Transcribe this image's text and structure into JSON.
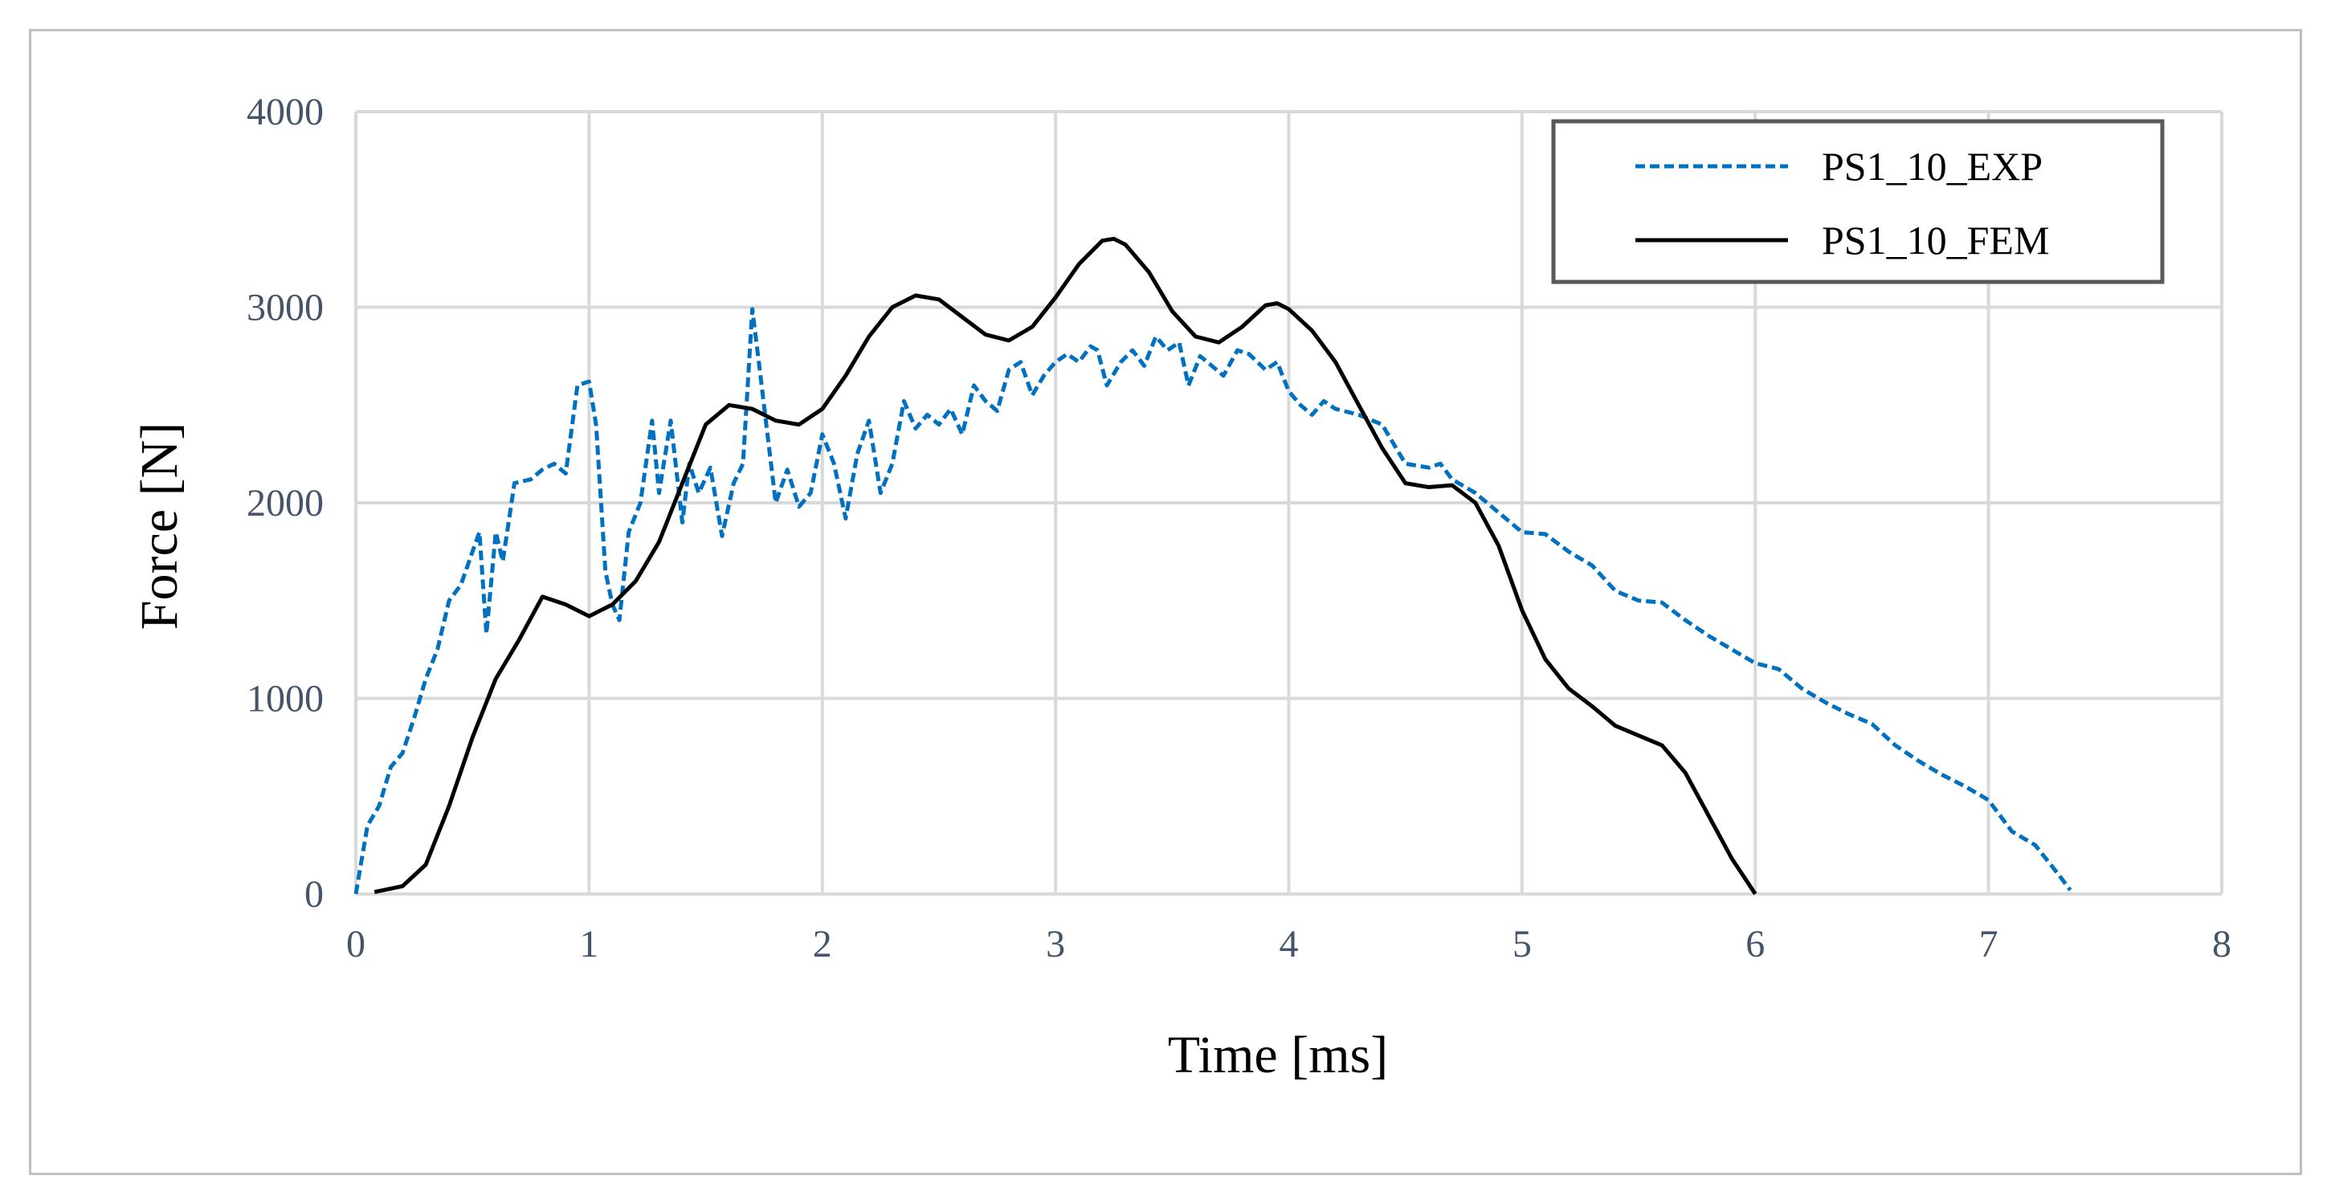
{
  "chart_data": {
    "type": "line",
    "xlabel": "Time [ms]",
    "ylabel": "Force [N]",
    "xlim": [
      0,
      8
    ],
    "ylim": [
      0,
      4000
    ],
    "x_ticks": [
      "0",
      "1",
      "2",
      "3",
      "4",
      "5",
      "6",
      "7",
      "8"
    ],
    "y_ticks": [
      "0",
      "1000",
      "2000",
      "3000",
      "4000"
    ],
    "grid": true,
    "legend_position": "top-right",
    "series": [
      {
        "name": "PS1_10_EXP",
        "color": "#0070c0",
        "style": "dashed",
        "points": [
          [
            0.0,
            0
          ],
          [
            0.05,
            350
          ],
          [
            0.1,
            450
          ],
          [
            0.15,
            650
          ],
          [
            0.2,
            720
          ],
          [
            0.25,
            900
          ],
          [
            0.3,
            1100
          ],
          [
            0.35,
            1250
          ],
          [
            0.4,
            1500
          ],
          [
            0.45,
            1580
          ],
          [
            0.5,
            1750
          ],
          [
            0.53,
            1850
          ],
          [
            0.55,
            1500
          ],
          [
            0.56,
            1330
          ],
          [
            0.6,
            1850
          ],
          [
            0.63,
            1700
          ],
          [
            0.68,
            2100
          ],
          [
            0.75,
            2120
          ],
          [
            0.8,
            2170
          ],
          [
            0.85,
            2200
          ],
          [
            0.9,
            2150
          ],
          [
            0.95,
            2600
          ],
          [
            1.0,
            2620
          ],
          [
            1.03,
            2400
          ],
          [
            1.07,
            1650
          ],
          [
            1.1,
            1480
          ],
          [
            1.13,
            1400
          ],
          [
            1.17,
            1850
          ],
          [
            1.22,
            2000
          ],
          [
            1.27,
            2420
          ],
          [
            1.3,
            2050
          ],
          [
            1.35,
            2420
          ],
          [
            1.4,
            1900
          ],
          [
            1.43,
            2200
          ],
          [
            1.47,
            2050
          ],
          [
            1.52,
            2180
          ],
          [
            1.57,
            1830
          ],
          [
            1.62,
            2100
          ],
          [
            1.66,
            2200
          ],
          [
            1.7,
            2990
          ],
          [
            1.73,
            2700
          ],
          [
            1.8,
            2000
          ],
          [
            1.85,
            2170
          ],
          [
            1.9,
            1980
          ],
          [
            1.95,
            2050
          ],
          [
            2.0,
            2350
          ],
          [
            2.05,
            2200
          ],
          [
            2.1,
            1920
          ],
          [
            2.15,
            2250
          ],
          [
            2.2,
            2420
          ],
          [
            2.25,
            2050
          ],
          [
            2.3,
            2200
          ],
          [
            2.35,
            2520
          ],
          [
            2.4,
            2380
          ],
          [
            2.45,
            2450
          ],
          [
            2.5,
            2400
          ],
          [
            2.55,
            2480
          ],
          [
            2.6,
            2350
          ],
          [
            2.65,
            2600
          ],
          [
            2.7,
            2520
          ],
          [
            2.75,
            2470
          ],
          [
            2.8,
            2680
          ],
          [
            2.85,
            2720
          ],
          [
            2.9,
            2550
          ],
          [
            2.95,
            2650
          ],
          [
            3.0,
            2720
          ],
          [
            3.05,
            2760
          ],
          [
            3.1,
            2720
          ],
          [
            3.15,
            2800
          ],
          [
            3.18,
            2780
          ],
          [
            3.22,
            2600
          ],
          [
            3.28,
            2720
          ],
          [
            3.33,
            2780
          ],
          [
            3.38,
            2700
          ],
          [
            3.43,
            2850
          ],
          [
            3.48,
            2780
          ],
          [
            3.53,
            2820
          ],
          [
            3.57,
            2600
          ],
          [
            3.62,
            2750
          ],
          [
            3.67,
            2700
          ],
          [
            3.72,
            2650
          ],
          [
            3.78,
            2780
          ],
          [
            3.83,
            2760
          ],
          [
            3.9,
            2680
          ],
          [
            3.95,
            2720
          ],
          [
            4.0,
            2570
          ],
          [
            4.05,
            2500
          ],
          [
            4.1,
            2450
          ],
          [
            4.15,
            2520
          ],
          [
            4.2,
            2480
          ],
          [
            4.3,
            2450
          ],
          [
            4.4,
            2400
          ],
          [
            4.5,
            2200
          ],
          [
            4.6,
            2180
          ],
          [
            4.65,
            2200
          ],
          [
            4.7,
            2120
          ],
          [
            4.8,
            2050
          ],
          [
            4.9,
            1950
          ],
          [
            5.0,
            1850
          ],
          [
            5.1,
            1840
          ],
          [
            5.2,
            1750
          ],
          [
            5.3,
            1680
          ],
          [
            5.4,
            1550
          ],
          [
            5.5,
            1500
          ],
          [
            5.6,
            1490
          ],
          [
            5.7,
            1400
          ],
          [
            5.8,
            1320
          ],
          [
            5.9,
            1250
          ],
          [
            6.0,
            1180
          ],
          [
            6.1,
            1150
          ],
          [
            6.2,
            1050
          ],
          [
            6.3,
            980
          ],
          [
            6.4,
            920
          ],
          [
            6.5,
            870
          ],
          [
            6.6,
            760
          ],
          [
            6.7,
            680
          ],
          [
            6.8,
            610
          ],
          [
            6.9,
            550
          ],
          [
            7.0,
            480
          ],
          [
            7.1,
            320
          ],
          [
            7.2,
            250
          ],
          [
            7.3,
            100
          ],
          [
            7.35,
            20
          ]
        ]
      },
      {
        "name": "PS1_10_FEM",
        "color": "#000000",
        "style": "solid",
        "points": [
          [
            0.08,
            10
          ],
          [
            0.2,
            40
          ],
          [
            0.3,
            150
          ],
          [
            0.4,
            450
          ],
          [
            0.5,
            800
          ],
          [
            0.6,
            1100
          ],
          [
            0.7,
            1300
          ],
          [
            0.8,
            1520
          ],
          [
            0.9,
            1480
          ],
          [
            1.0,
            1420
          ],
          [
            1.1,
            1480
          ],
          [
            1.2,
            1600
          ],
          [
            1.3,
            1800
          ],
          [
            1.4,
            2100
          ],
          [
            1.5,
            2400
          ],
          [
            1.6,
            2500
          ],
          [
            1.7,
            2480
          ],
          [
            1.8,
            2420
          ],
          [
            1.9,
            2400
          ],
          [
            2.0,
            2480
          ],
          [
            2.1,
            2650
          ],
          [
            2.2,
            2850
          ],
          [
            2.3,
            3000
          ],
          [
            2.4,
            3060
          ],
          [
            2.5,
            3040
          ],
          [
            2.6,
            2950
          ],
          [
            2.7,
            2860
          ],
          [
            2.8,
            2830
          ],
          [
            2.9,
            2900
          ],
          [
            3.0,
            3050
          ],
          [
            3.1,
            3220
          ],
          [
            3.2,
            3340
          ],
          [
            3.25,
            3350
          ],
          [
            3.3,
            3320
          ],
          [
            3.4,
            3180
          ],
          [
            3.5,
            2980
          ],
          [
            3.6,
            2850
          ],
          [
            3.7,
            2820
          ],
          [
            3.8,
            2900
          ],
          [
            3.9,
            3010
          ],
          [
            3.95,
            3020
          ],
          [
            4.0,
            2990
          ],
          [
            4.1,
            2880
          ],
          [
            4.2,
            2720
          ],
          [
            4.3,
            2500
          ],
          [
            4.4,
            2280
          ],
          [
            4.5,
            2100
          ],
          [
            4.6,
            2080
          ],
          [
            4.7,
            2090
          ],
          [
            4.8,
            2000
          ],
          [
            4.9,
            1780
          ],
          [
            5.0,
            1450
          ],
          [
            5.1,
            1200
          ],
          [
            5.2,
            1050
          ],
          [
            5.3,
            960
          ],
          [
            5.4,
            860
          ],
          [
            5.5,
            810
          ],
          [
            5.6,
            760
          ],
          [
            5.7,
            620
          ],
          [
            5.8,
            400
          ],
          [
            5.9,
            180
          ],
          [
            6.0,
            0
          ]
        ]
      }
    ]
  }
}
